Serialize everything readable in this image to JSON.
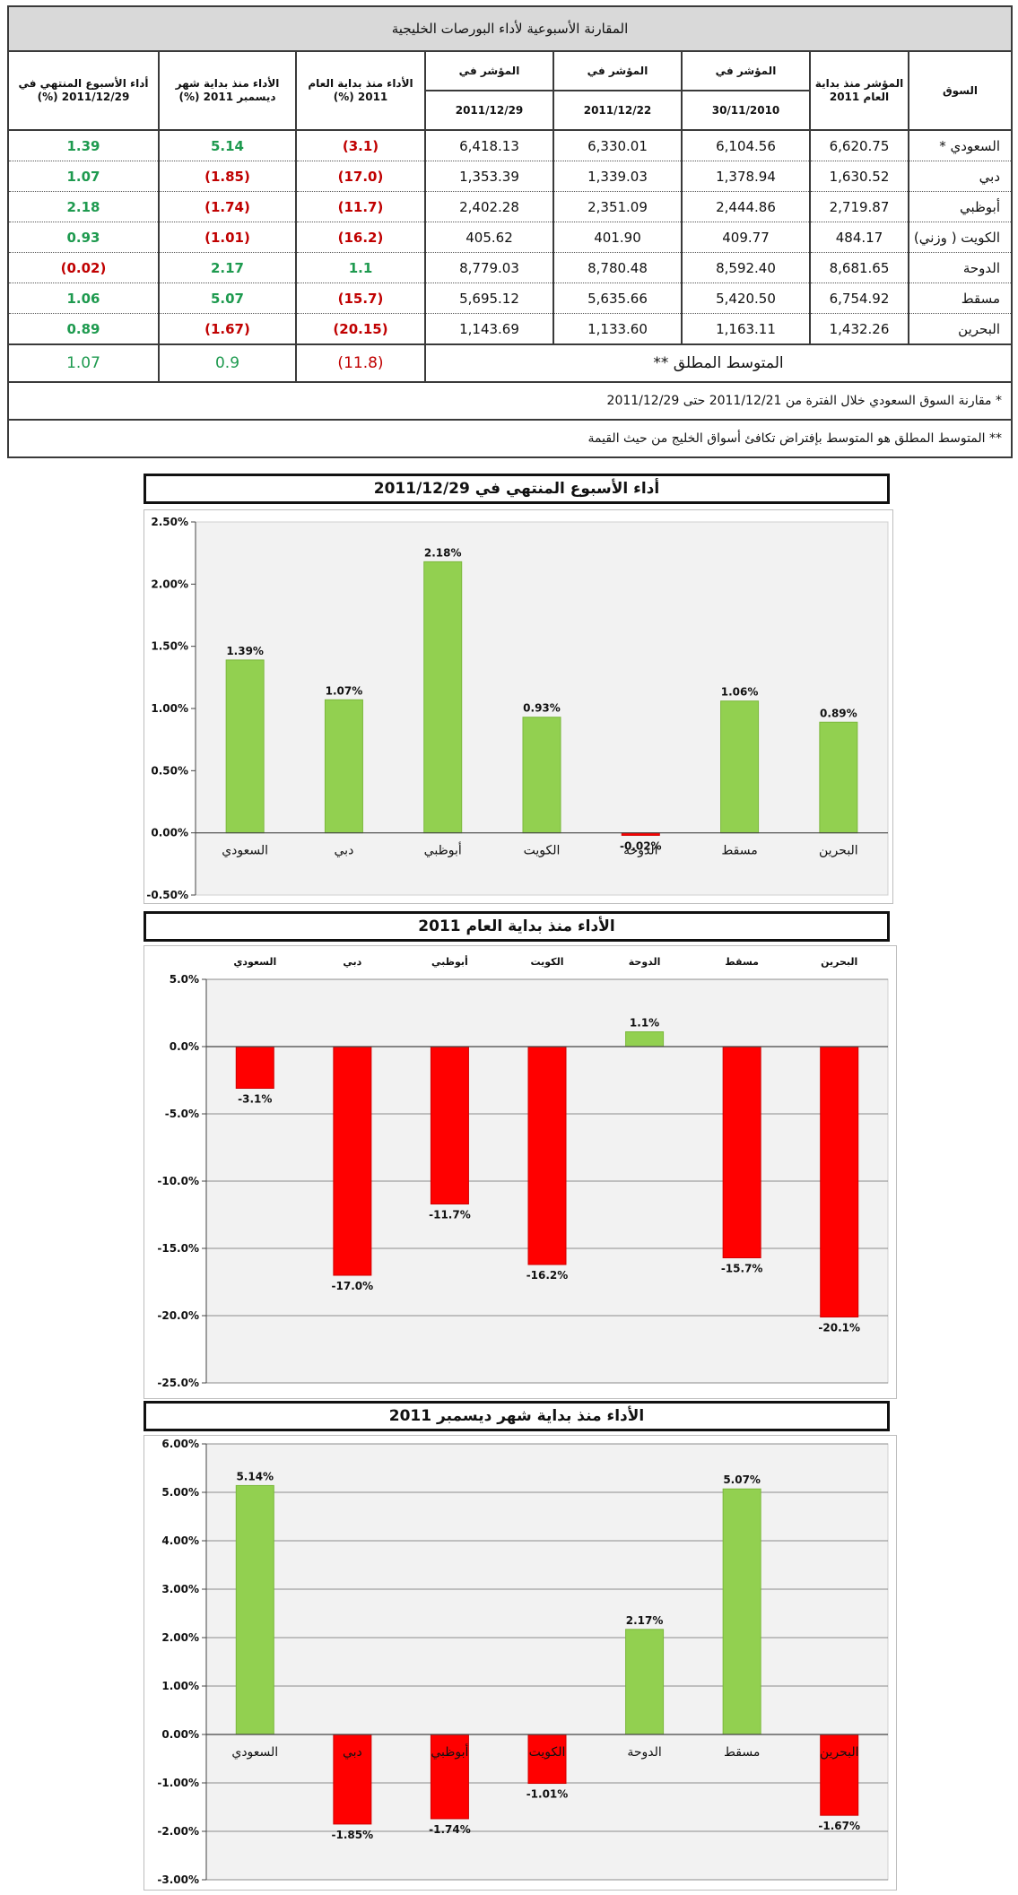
{
  "table": {
    "title": "المقارنة الأسبوعية لأداء البورصات الخليجية",
    "headers": {
      "market": "السوق",
      "start_year_index": "المؤشر منذ بداية العام 2011",
      "index_label": "المؤشر في",
      "date1": "30/11/2010",
      "date2": "2011/12/22",
      "date3": "2011/12/29",
      "ytd": "الأداء منذ بداية العام 2011 (%)",
      "mtd": "الأداء منذ بداية شهر ديسمبر 2011 (%)",
      "weekly": "أداء الأسبوع المنتهي في 2011/12/29 (%)"
    },
    "rows": [
      {
        "market": "السعودي *",
        "start": "6,620.75",
        "d1": "6,104.56",
        "d2": "6,330.01",
        "d3": "6,418.13",
        "ytd": "(3.1)",
        "mtd": "5.14",
        "weekly": "1.39"
      },
      {
        "market": "دبي",
        "start": "1,630.52",
        "d1": "1,378.94",
        "d2": "1,339.03",
        "d3": "1,353.39",
        "ytd": "(17.0)",
        "mtd": "(1.85)",
        "weekly": "1.07"
      },
      {
        "market": "أبوظبي",
        "start": "2,719.87",
        "d1": "2,444.86",
        "d2": "2,351.09",
        "d3": "2,402.28",
        "ytd": "(11.7)",
        "mtd": "(1.74)",
        "weekly": "2.18"
      },
      {
        "market": "الكويت ( وزني)",
        "start": "484.17",
        "d1": "409.77",
        "d2": "401.90",
        "d3": "405.62",
        "ytd": "(16.2)",
        "mtd": "(1.01)",
        "weekly": "0.93"
      },
      {
        "market": "الدوحة",
        "start": "8,681.65",
        "d1": "8,592.40",
        "d2": "8,780.48",
        "d3": "8,779.03",
        "ytd": "1.1",
        "mtd": "2.17",
        "weekly": "(0.02)"
      },
      {
        "market": "مسقط",
        "start": "6,754.92",
        "d1": "5,420.50",
        "d2": "5,635.66",
        "d3": "5,695.12",
        "ytd": "(15.7)",
        "mtd": "5.07",
        "weekly": "1.06"
      },
      {
        "market": "البحرين",
        "start": "1,432.26",
        "d1": "1,163.11",
        "d2": "1,133.60",
        "d3": "1,143.69",
        "ytd": "(20.15)",
        "mtd": "(1.67)",
        "weekly": "0.89"
      }
    ],
    "average": {
      "label": "المتوسط المطلق **",
      "ytd": "(11.8)",
      "mtd": "0.9",
      "weekly": "1.07"
    },
    "note1": "*  مقارنة السوق السعودي  خلال الفترة من 2011/12/21 حتى 2011/12/29",
    "note2": "** المتوسط المطلق هو المتوسط بإفتراض تكافئ أسواق الخليج من حيث القيمة"
  },
  "colors": {
    "positive_bar": "#92d050",
    "negative_bar": "#ff0000",
    "positive_text": "#1e9a4f",
    "negative_text": "#c00000"
  },
  "chart_data": [
    {
      "type": "bar",
      "title": "أداء الأسبوع المنتهي في 2011/12/29",
      "categories": [
        "السعودي",
        "دبي",
        "أبوظبي",
        "الكويت",
        "الدوحة",
        "مسقط",
        "البحرين"
      ],
      "values": [
        1.39,
        1.07,
        2.18,
        0.93,
        -0.02,
        1.06,
        0.89
      ],
      "value_labels": [
        "1.39%",
        "1.07%",
        "2.18%",
        "0.93%",
        "-0.02%",
        "1.06%",
        "0.89%"
      ],
      "yticks": [
        "2.50%",
        "2.00%",
        "1.50%",
        "1.00%",
        "0.50%",
        "0.00%",
        "-0.50%"
      ],
      "ylim": [
        -0.5,
        2.5
      ],
      "ytick_step": 0.5,
      "category_position": "bottom",
      "grid": false,
      "xlabel": "",
      "ylabel": ""
    },
    {
      "type": "bar",
      "title": "الأداء منذ بداية العام 2011",
      "categories": [
        "السعودي",
        "دبي",
        "أبوظبي",
        "الكويت",
        "الدوحة",
        "مسقط",
        "البحرين"
      ],
      "values": [
        -3.1,
        -17.0,
        -11.7,
        -16.2,
        1.1,
        -15.7,
        -20.1
      ],
      "value_labels": [
        "-3.1%",
        "-17.0%",
        "-11.7%",
        "-16.2%",
        "1.1%",
        "-15.7%",
        "-20.1%"
      ],
      "yticks": [
        "5.0%",
        "0.0%",
        "-5.0%",
        "-10.0%",
        "-15.0%",
        "-20.0%",
        "-25.0%"
      ],
      "ylim": [
        -25,
        5
      ],
      "ytick_step": 5,
      "category_position": "top",
      "grid": true,
      "xlabel": "",
      "ylabel": ""
    },
    {
      "type": "bar",
      "title": "الأداء منذ بداية شهر ديسمبر 2011",
      "categories": [
        "السعودي",
        "دبي",
        "أبوظبي",
        "الكويت",
        "الدوحة",
        "مسقط",
        "البحرين"
      ],
      "values": [
        5.14,
        -1.85,
        -1.74,
        -1.01,
        2.17,
        5.07,
        -1.67
      ],
      "value_labels": [
        "5.14%",
        "-1.85%",
        "-1.74%",
        "-1.01%",
        "2.17%",
        "5.07%",
        "-1.67%"
      ],
      "yticks": [
        "6.00%",
        "5.00%",
        "4.00%",
        "3.00%",
        "2.00%",
        "1.00%",
        "0.00%",
        "-1.00%",
        "-2.00%",
        "-3.00%"
      ],
      "ylim": [
        -3,
        6
      ],
      "ytick_step": 1,
      "category_position": "axis",
      "grid": true,
      "xlabel": "",
      "ylabel": ""
    }
  ]
}
